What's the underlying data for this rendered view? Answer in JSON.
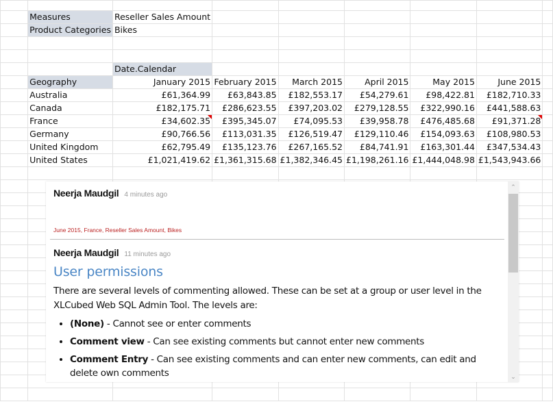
{
  "filters": [
    {
      "label": "Measures",
      "value": "Reseller Sales Amount"
    },
    {
      "label": "Product Categories",
      "value": "Bikes"
    }
  ],
  "column_dimension": "Date.Calendar",
  "row_dimension": "Geography",
  "columns": [
    "January 2015",
    "February 2015",
    "March 2015",
    "April 2015",
    "May 2015",
    "June 2015"
  ],
  "rows": [
    {
      "name": "Australia",
      "values": [
        "£61,364.99",
        "£63,843.85",
        "£182,553.17",
        "£54,279.61",
        "£98,422.81",
        "£182,710.33"
      ]
    },
    {
      "name": "Canada",
      "values": [
        "£182,175.71",
        "£286,623.55",
        "£397,203.02",
        "£279,128.55",
        "£322,990.16",
        "£441,588.63"
      ]
    },
    {
      "name": "France",
      "values": [
        "£34,602.35",
        "£395,345.07",
        "£74,095.53",
        "£39,958.78",
        "£476,485.68",
        "£91,371.28"
      ],
      "commented": [
        0,
        5
      ]
    },
    {
      "name": "Germany",
      "values": [
        "£90,766.56",
        "£113,031.35",
        "£126,519.47",
        "£129,110.46",
        "£154,093.63",
        "£108,980.53"
      ]
    },
    {
      "name": "United Kingdom",
      "values": [
        "£62,795.49",
        "£135,123.76",
        "£267,165.52",
        "£84,741.91",
        "£163,301.44",
        "£347,534.43"
      ]
    },
    {
      "name": "United States",
      "values": [
        "£1,021,419.62",
        "£1,361,315.68",
        "£1,382,346.45",
        "£1,198,261.16",
        "£1,444,048.98",
        "£1,543,943.66"
      ]
    }
  ],
  "comment_indicator_color": "#e00000",
  "comments": [
    {
      "author": "Neerja Maudgil",
      "time": "4 minutes ago",
      "context": "June 2015, France, Reseller Sales Amount, Bikes"
    },
    {
      "author": "Neerja Maudgil",
      "time": "11 minutes ago",
      "heading": "User permissions",
      "paragraph": "There are several levels of commenting allowed. These can be set at a group or user level in the XLCubed Web SQL Admin Tool. The levels are:",
      "items": [
        {
          "term": "(None)",
          "desc": " - Cannot see or enter comments"
        },
        {
          "term": "Comment view",
          "desc": " - Can see existing comments but cannot enter new comments"
        },
        {
          "term": "Comment Entry",
          "desc": " - Can see existing comments and can enter new comments, can edit and delete own comments"
        }
      ]
    }
  ],
  "scrollbar": {
    "up_icon": "chevron-up-icon",
    "down_icon": "chevron-down-icon"
  }
}
